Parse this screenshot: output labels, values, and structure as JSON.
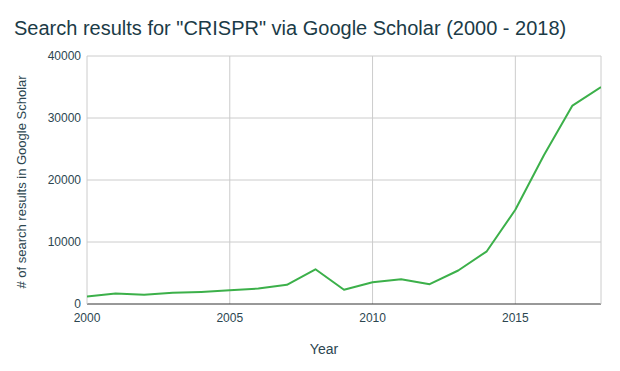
{
  "chart_data": {
    "type": "line",
    "title": "Search results for \"CRISPR\" via Google Scholar (2000 - 2018)",
    "x_label": "Year",
    "y_label": "# of search results in Google Scholar",
    "x": [
      2000,
      2001,
      2002,
      2003,
      2004,
      2005,
      2006,
      2007,
      2008,
      2009,
      2010,
      2011,
      2012,
      2013,
      2014,
      2015,
      2016,
      2017,
      2018
    ],
    "values": [
      1200,
      1700,
      1500,
      1800,
      1950,
      2200,
      2500,
      3100,
      5600,
      2300,
      3500,
      4000,
      3200,
      5400,
      8500,
      15200,
      24000,
      32000,
      35000
    ],
    "color": "#3cb04a",
    "xlim": [
      2000,
      2018
    ],
    "xticks": [
      2000,
      2005,
      2010,
      2015
    ],
    "ylim": [
      0,
      40000
    ],
    "yticks": [
      0,
      10000,
      20000,
      30000,
      40000
    ],
    "grid": true
  }
}
